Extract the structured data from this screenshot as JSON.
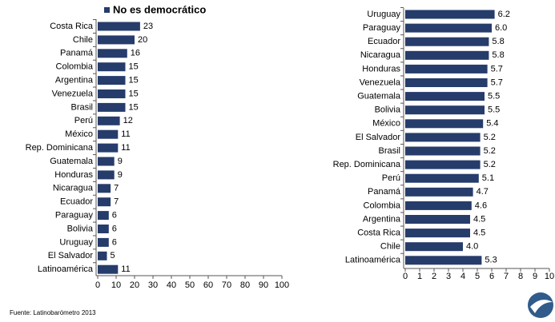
{
  "chart_data": [
    {
      "type": "bar",
      "orientation": "horizontal",
      "categories": [
        "Costa Rica",
        "Chile",
        "Panamá",
        "Colombia",
        "Argentina",
        "Venezuela",
        "Brasil",
        "Perú",
        "México",
        "Rep. Dominicana",
        "Guatemala",
        "Honduras",
        "Nicaragua",
        "Ecuador",
        "Paraguay",
        "Bolivia",
        "Uruguay",
        "El Salvador",
        "Latinoamérica"
      ],
      "series": [
        {
          "name": "No es democrático",
          "color": "#263c6b",
          "values": [
            23,
            20,
            16,
            15,
            15,
            15,
            15,
            12,
            11,
            11,
            9,
            9,
            7,
            7,
            6,
            6,
            6,
            5,
            11
          ]
        }
      ],
      "xlim": [
        0,
        100
      ],
      "xticks": [
        0,
        10,
        20,
        30,
        40,
        50,
        60,
        70,
        80,
        90,
        100
      ],
      "legend": "top"
    },
    {
      "type": "bar",
      "orientation": "horizontal",
      "categories": [
        "Uruguay",
        "Paraguay",
        "Ecuador",
        "Nicaragua",
        "Honduras",
        "Venezuela",
        "Guatemala",
        "Bolivia",
        "México",
        "El Salvador",
        "Brasil",
        "Rep. Dominicana",
        "Perú",
        "Panamá",
        "Colombia",
        "Argentina",
        "Costa Rica",
        "Chile",
        "Latinoamérica"
      ],
      "color": "#263c6b",
      "values": [
        6.2,
        6.0,
        5.8,
        5.8,
        5.7,
        5.7,
        5.5,
        5.5,
        5.4,
        5.2,
        5.2,
        5.2,
        5.1,
        4.7,
        4.6,
        4.5,
        4.5,
        4.0,
        5.3
      ],
      "value_labels": [
        "6.2",
        "6.0",
        "5.8",
        "5.8",
        "5.7",
        "5.7",
        "5.5",
        "5.5",
        "5.4",
        "5.2",
        "5.2",
        "5.2",
        "5.1",
        "4.7",
        "4.6",
        "4.5",
        "4.5",
        "4.0",
        "5.3"
      ],
      "xlim": [
        0,
        10
      ],
      "xticks": [
        0,
        1,
        2,
        3,
        4,
        5,
        6,
        7,
        8,
        9,
        10
      ]
    }
  ],
  "footer": "Fuente: Latinobarómetro 2013"
}
